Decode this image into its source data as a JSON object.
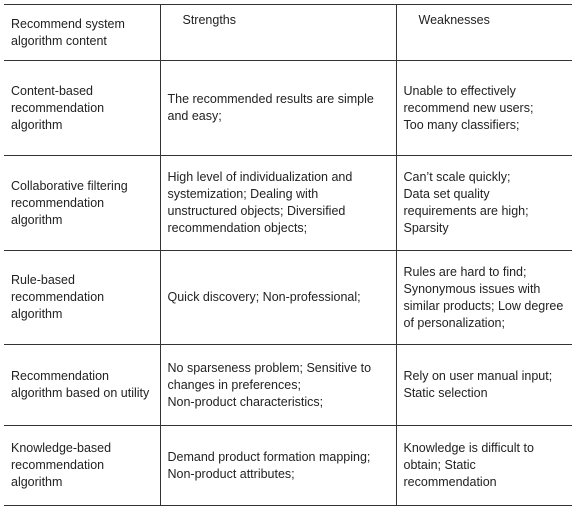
{
  "table": {
    "header": [
      "Recommend system algorithm content",
      "Strengths",
      "Weaknesses"
    ],
    "rows": [
      [
        "Content-based recommendation algorithm",
        "The recommended results are simple and easy;",
        "Unable to effectively recommend new users;\nToo many classifiers;"
      ],
      [
        "Collaborative filtering recommendation algorithm",
        "High level of individualization and systemization; Dealing with unstructured objects; Diversified recommendation objects;",
        "Can’t scale quickly;\nData set quality requirements are high;\nSparsity"
      ],
      [
        "Rule-based recommendation algorithm",
        "Quick discovery; Non-professional;",
        "Rules are hard to find;\nSynonymous issues with similar products; Low degree of personalization;"
      ],
      [
        "Recommendation algorithm based on utility",
        "No sparseness problem; Sensitive to changes in preferences;\nNon-product characteristics;",
        "Rely on user manual input;\nStatic selection"
      ],
      [
        "Knowledge-based recommendation algorithm",
        "Demand product formation mapping;\nNon-product attributes;",
        "Knowledge is difficult to obtain; Static recommendation"
      ]
    ]
  }
}
